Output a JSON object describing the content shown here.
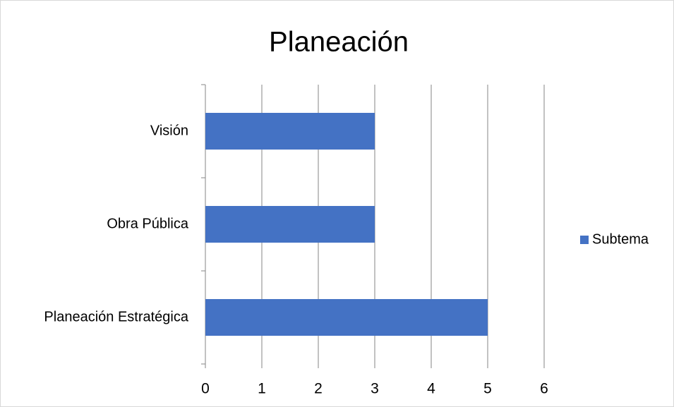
{
  "chart_data": {
    "type": "bar",
    "orientation": "horizontal",
    "title": "Planeación",
    "categories": [
      "Planeación Estratégica",
      "Obra Pública",
      "Visión"
    ],
    "series": [
      {
        "name": "Subtema",
        "color": "#4472c4",
        "values": [
          5,
          3,
          3
        ]
      }
    ],
    "xlim": [
      0,
      6
    ],
    "xticks": [
      0,
      1,
      2,
      3,
      4,
      5,
      6
    ],
    "grid": true,
    "legend": "right"
  }
}
